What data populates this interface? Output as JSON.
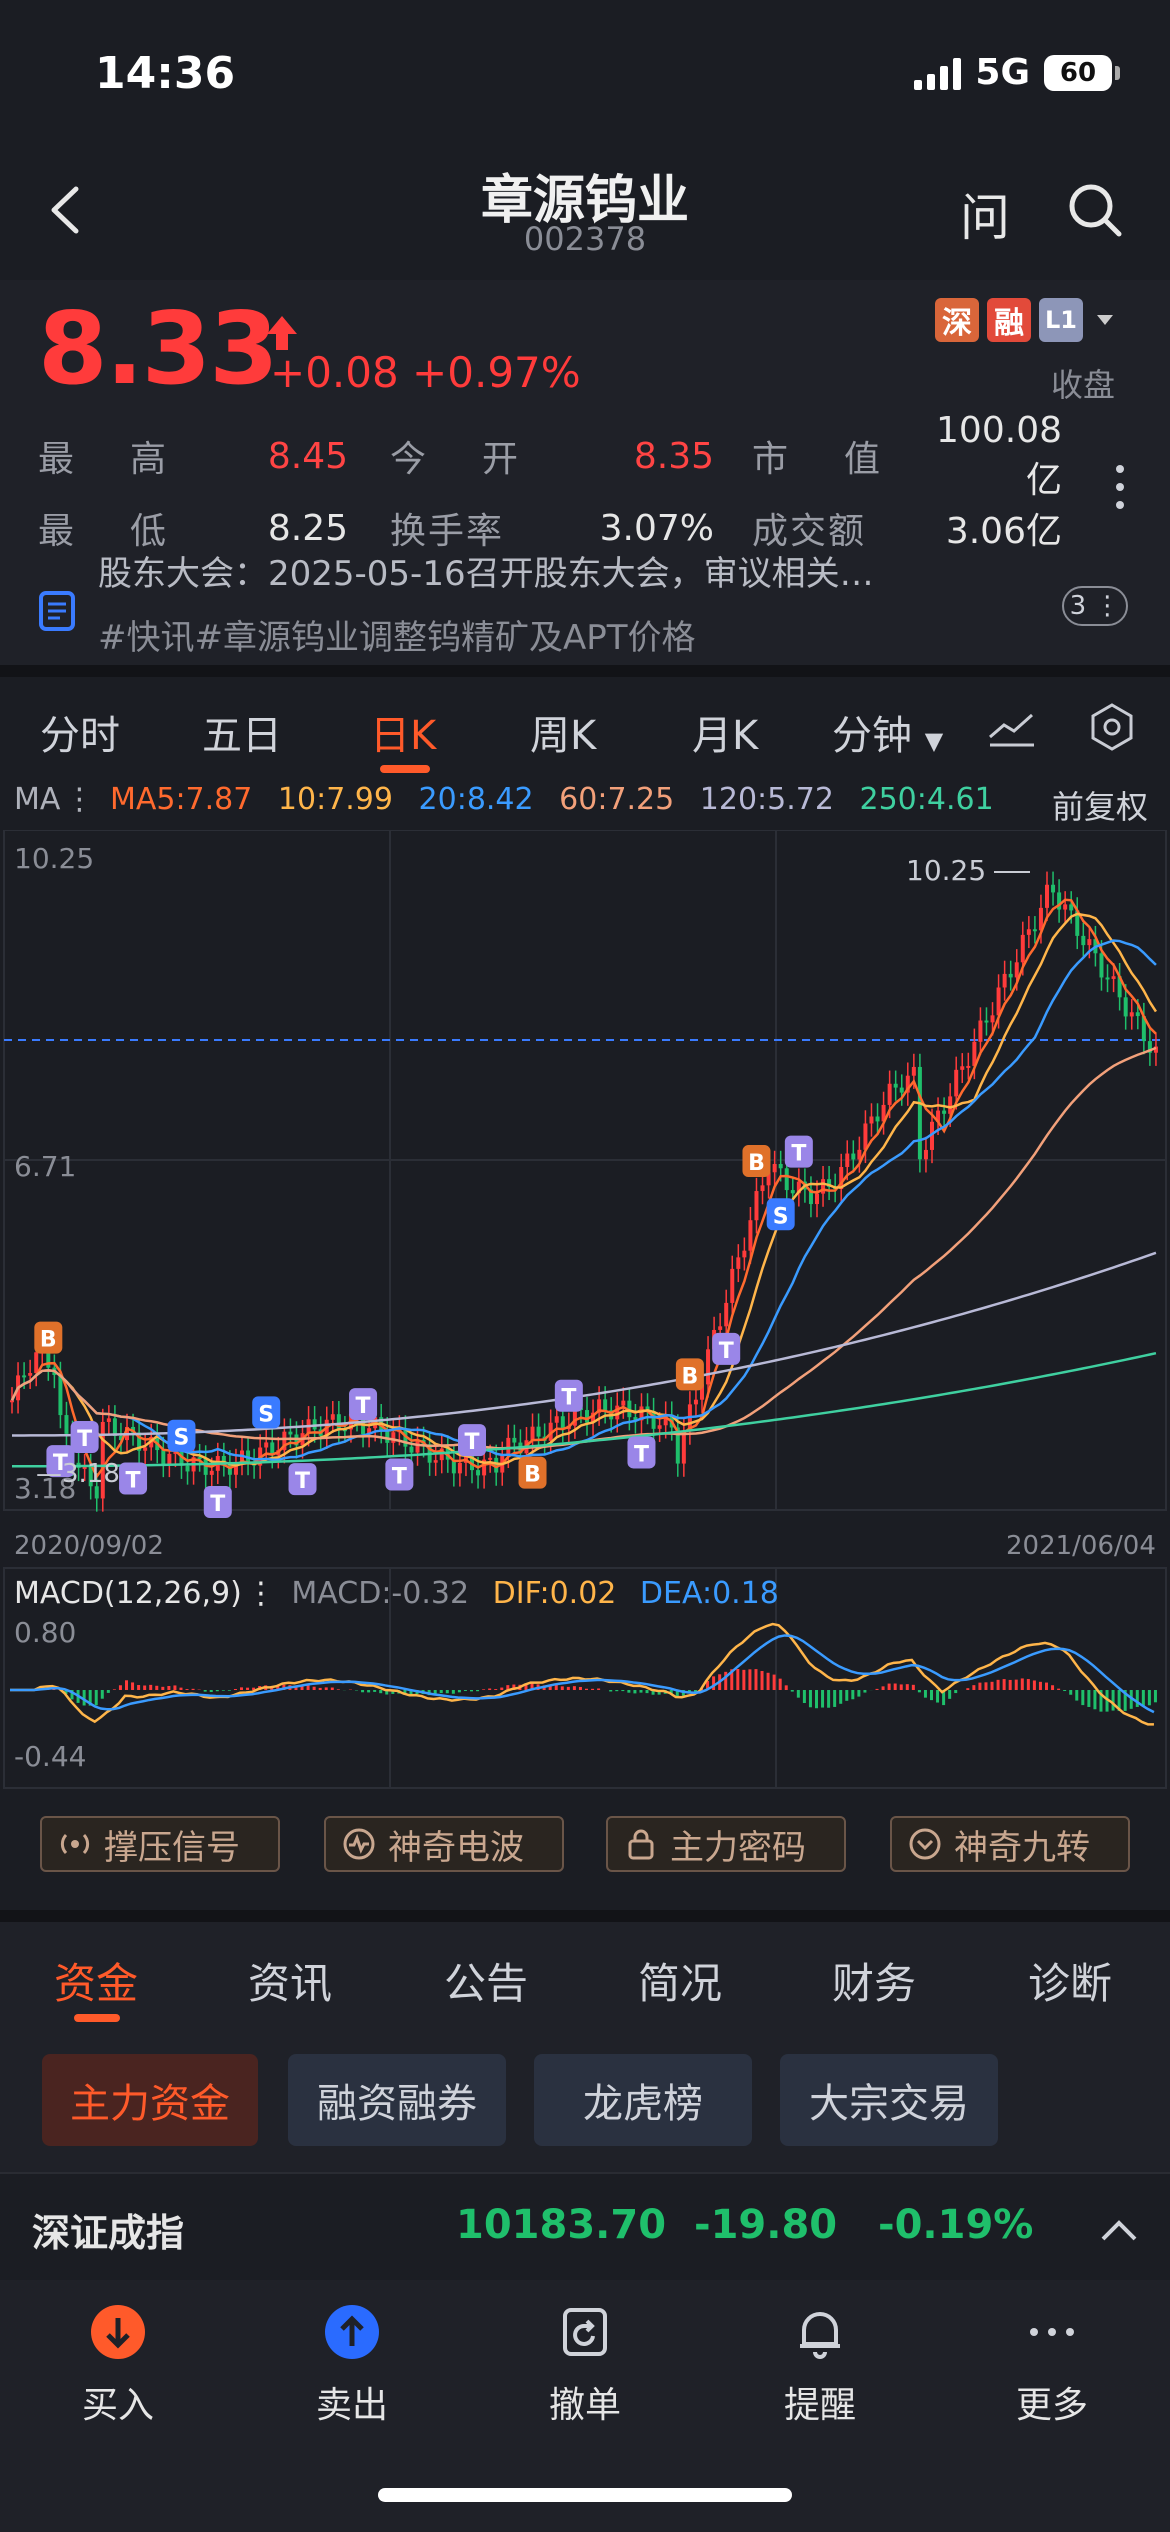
{
  "status": {
    "time": "14:36",
    "network": "5G",
    "battery": "60"
  },
  "header": {
    "title": "章源钨业",
    "code": "002378",
    "ask_label": "问"
  },
  "quote": {
    "price": "8.33",
    "change": "+0.08 +0.97%",
    "tags": [
      "深",
      "融",
      "L1"
    ],
    "state": "收盘",
    "stats": [
      [
        {
          "label": "最　高",
          "value": "8.45"
        },
        {
          "label": "今　开",
          "value": "8.35"
        },
        {
          "label": "市　值",
          "value": "100.08亿"
        }
      ],
      [
        {
          "label": "最　低",
          "value": "8.25"
        },
        {
          "label": "换手率",
          "value": "3.07%"
        },
        {
          "label": "成交额",
          "value": "3.06亿"
        }
      ]
    ],
    "news_line1": "股东大会：2025-05-16召开股东大会，审议相关…",
    "news_line2": "#快讯#章源钨业调整钨精矿及APT价格",
    "news_count": "3"
  },
  "chart_tabs": [
    "分时",
    "五日",
    "日K",
    "周K",
    "月K",
    "分钟"
  ],
  "chart_tabs_active": "日K",
  "ma_legend": {
    "label": "MA",
    "items": [
      {
        "text": "MA5:7.87",
        "color": "#ff6a2e"
      },
      {
        "text": "10:7.99",
        "color": "#ffb54a"
      },
      {
        "text": "20:8.42",
        "color": "#3a9bff"
      },
      {
        "text": "60:7.25",
        "color": "#f2a07a"
      },
      {
        "text": "120:5.72",
        "color": "#b8b9d6"
      },
      {
        "text": "250:4.61",
        "color": "#3fd0a0"
      }
    ],
    "adjust_label": "前复权"
  },
  "chart_data": {
    "type": "candlestick",
    "y_labels": [
      "10.25",
      "6.71",
      "3.18"
    ],
    "max_marker": "10.25",
    "min_marker": "3.18",
    "start_date": "2020/09/02",
    "end_date": "2021/06/04",
    "reference_line_label": "",
    "ma_lines": [
      "MA5",
      "MA10",
      "MA20",
      "MA60",
      "MA120",
      "MA250"
    ],
    "macd": {
      "label": "MACD(12,26,9)",
      "macd": "MACD:-0.32",
      "dif": "DIF:0.02",
      "dea": "DEA:0.18",
      "y_top": "0.80",
      "y_bottom": "-0.44"
    }
  },
  "features": [
    "撑压信号",
    "神奇电波",
    "主力密码",
    "神奇九转"
  ],
  "info_tabs": [
    "资金",
    "资讯",
    "公告",
    "简况",
    "财务",
    "诊断"
  ],
  "info_tabs_active": "资金",
  "sub_tabs": [
    "主力资金",
    "融资融券",
    "龙虎榜",
    "大宗交易"
  ],
  "index_bar": {
    "name": "深证成指",
    "value": "10183.70",
    "change": "-19.80",
    "pct": "-0.19%"
  },
  "toolbar": [
    "买入",
    "卖出",
    "撤单",
    "提醒",
    "更多"
  ],
  "colors": {
    "up": "#ff3b3b",
    "down": "#1fbf6b",
    "accent": "#ff5a2a"
  }
}
